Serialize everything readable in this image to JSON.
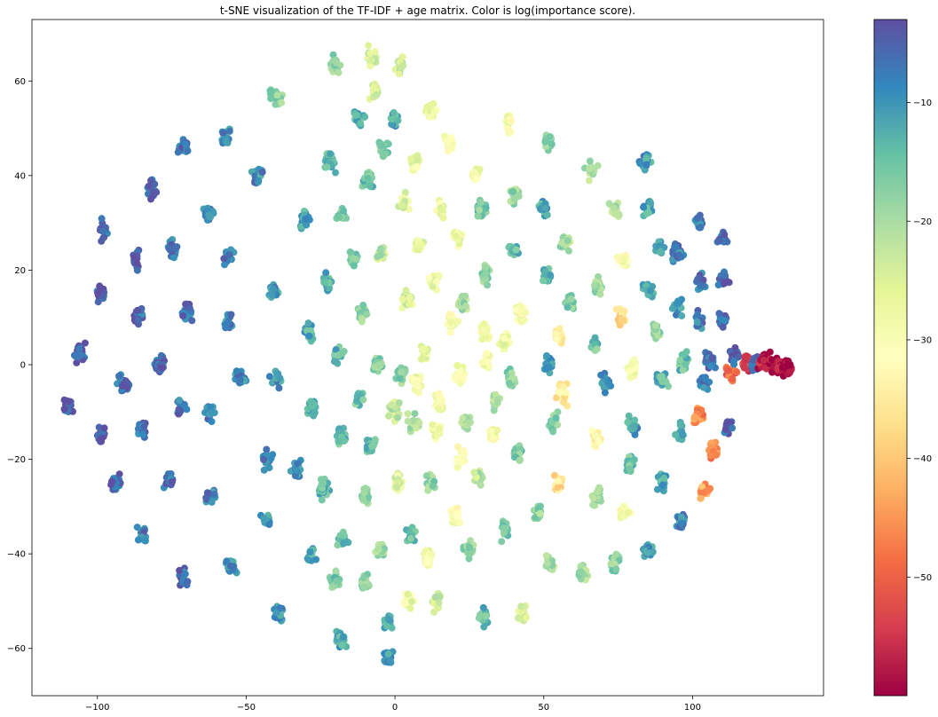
{
  "chart_data": {
    "type": "scatter",
    "title": "t-SNE visualization of the TF-IDF + age matrix. Color is log(importance score).",
    "xlabel": "",
    "ylabel": "",
    "xlim": [
      -122,
      144
    ],
    "ylim": [
      -70,
      73
    ],
    "xticks": [
      -100,
      -50,
      0,
      50,
      100
    ],
    "yticks": [
      -60,
      -40,
      -20,
      0,
      20,
      40,
      60
    ],
    "xtick_labels": [
      "−100",
      "−50",
      "0",
      "50",
      "100"
    ],
    "ytick_labels": [
      "−60",
      "−40",
      "−20",
      "0",
      "20",
      "40",
      "60"
    ],
    "grid": false,
    "colormap": "Spectral",
    "colorbar": {
      "label": "log(importance score)",
      "range": [
        -60,
        -3
      ],
      "ticks": [
        -10,
        -20,
        -30,
        -40,
        -50
      ],
      "tick_labels": [
        "−10",
        "−20",
        "−30",
        "−40",
        "−50"
      ],
      "colors": [
        "#9e0142",
        "#d53e4f",
        "#f46d43",
        "#fdae61",
        "#fee08b",
        "#ffffbf",
        "#e6f598",
        "#abdda4",
        "#66c2a5",
        "#3288bd",
        "#5e4fa2"
      ]
    },
    "clusters": [
      {
        "x": -110,
        "y": -8.5,
        "value": -4
      },
      {
        "x": -106,
        "y": 2.5,
        "value": -4
      },
      {
        "x": -99,
        "y": 15,
        "value": -4
      },
      {
        "x": -99,
        "y": -15,
        "value": -4
      },
      {
        "x": -98,
        "y": 29,
        "value": -5
      },
      {
        "x": -94,
        "y": -25,
        "value": -5
      },
      {
        "x": -91,
        "y": -4,
        "value": -6
      },
      {
        "x": -87,
        "y": 22,
        "value": -6
      },
      {
        "x": -86,
        "y": 10.5,
        "value": -6
      },
      {
        "x": -85,
        "y": -14,
        "value": -6
      },
      {
        "x": -85,
        "y": -36,
        "value": -7
      },
      {
        "x": -82,
        "y": 37,
        "value": -6
      },
      {
        "x": -79,
        "y": 0,
        "value": -6
      },
      {
        "x": -76,
        "y": -25,
        "value": -7
      },
      {
        "x": -75,
        "y": 24,
        "value": -7
      },
      {
        "x": -72,
        "y": -9,
        "value": -7
      },
      {
        "x": -71,
        "y": 46,
        "value": -7
      },
      {
        "x": -71,
        "y": -45,
        "value": -7
      },
      {
        "x": -70,
        "y": 11,
        "value": -7
      },
      {
        "x": -63,
        "y": 32,
        "value": -8
      },
      {
        "x": -62,
        "y": -10,
        "value": -8
      },
      {
        "x": -62,
        "y": -28,
        "value": -8
      },
      {
        "x": -57,
        "y": 48,
        "value": -8
      },
      {
        "x": -56,
        "y": 23,
        "value": -8
      },
      {
        "x": -56,
        "y": 9,
        "value": -8
      },
      {
        "x": -55,
        "y": -43,
        "value": -9
      },
      {
        "x": -52,
        "y": -3,
        "value": -9
      },
      {
        "x": -46,
        "y": 40,
        "value": -9
      },
      {
        "x": -43,
        "y": -20,
        "value": -9
      },
      {
        "x": -43,
        "y": -33,
        "value": -10
      },
      {
        "x": -41,
        "y": 16,
        "value": -10
      },
      {
        "x": -40,
        "y": -3,
        "value": -10
      },
      {
        "x": -40,
        "y": 57,
        "value": -18
      },
      {
        "x": -39,
        "y": -53,
        "value": -10
      },
      {
        "x": -33,
        "y": -22,
        "value": -10
      },
      {
        "x": -30,
        "y": 31,
        "value": -11
      },
      {
        "x": -29,
        "y": 7,
        "value": -12
      },
      {
        "x": -28,
        "y": -40,
        "value": -12
      },
      {
        "x": -28,
        "y": -9,
        "value": -13
      },
      {
        "x": -24,
        "y": -26,
        "value": -14
      },
      {
        "x": -23,
        "y": 17,
        "value": -13
      },
      {
        "x": -22,
        "y": 43,
        "value": -15
      },
      {
        "x": -20,
        "y": -46,
        "value": -16
      },
      {
        "x": -20,
        "y": 63,
        "value": -19
      },
      {
        "x": -19,
        "y": 2,
        "value": -14
      },
      {
        "x": -18,
        "y": -58,
        "value": -12
      },
      {
        "x": -18,
        "y": -15,
        "value": -14
      },
      {
        "x": -18,
        "y": 32,
        "value": -17
      },
      {
        "x": -18,
        "y": -37,
        "value": -15
      },
      {
        "x": -14,
        "y": 23,
        "value": -16
      },
      {
        "x": -12,
        "y": -7,
        "value": -15
      },
      {
        "x": -12,
        "y": 52,
        "value": -14
      },
      {
        "x": -11,
        "y": 11,
        "value": -18
      },
      {
        "x": -10,
        "y": -28,
        "value": -18
      },
      {
        "x": -10,
        "y": -46,
        "value": -17
      },
      {
        "x": -9,
        "y": 39,
        "value": -15
      },
      {
        "x": -8,
        "y": 65,
        "value": -24
      },
      {
        "x": -8,
        "y": -17,
        "value": -15
      },
      {
        "x": -7,
        "y": 58,
        "value": -25
      },
      {
        "x": -6,
        "y": 0,
        "value": -17
      },
      {
        "x": -5,
        "y": 24,
        "value": -22
      },
      {
        "x": -5,
        "y": -39,
        "value": -19
      },
      {
        "x": -4,
        "y": 46,
        "value": -17
      },
      {
        "x": -2,
        "y": -55,
        "value": -14
      },
      {
        "x": -2,
        "y": -62,
        "value": -10
      },
      {
        "x": 0,
        "y": 52,
        "value": -12
      },
      {
        "x": 0,
        "y": -10,
        "value": -22
      },
      {
        "x": 1,
        "y": -25,
        "value": -26
      },
      {
        "x": 2,
        "y": -2,
        "value": -18
      },
      {
        "x": 2,
        "y": 63,
        "value": -22
      },
      {
        "x": 3,
        "y": 34,
        "value": -26
      },
      {
        "x": 4,
        "y": 14,
        "value": -25
      },
      {
        "x": 5,
        "y": -36,
        "value": -14
      },
      {
        "x": 5,
        "y": -50,
        "value": -28
      },
      {
        "x": 6,
        "y": -12,
        "value": -20
      },
      {
        "x": 7,
        "y": -4,
        "value": -29
      },
      {
        "x": 7,
        "y": 43,
        "value": -27
      },
      {
        "x": 8,
        "y": 25,
        "value": -27
      },
      {
        "x": 10,
        "y": 3,
        "value": -26
      },
      {
        "x": 11,
        "y": -41,
        "value": -29
      },
      {
        "x": 12,
        "y": -25,
        "value": -18
      },
      {
        "x": 12,
        "y": 54,
        "value": -29
      },
      {
        "x": 13,
        "y": 18,
        "value": -28
      },
      {
        "x": 14,
        "y": -14,
        "value": -29
      },
      {
        "x": 14,
        "y": -50,
        "value": -24
      },
      {
        "x": 15,
        "y": -8,
        "value": -29
      },
      {
        "x": 16,
        "y": 33,
        "value": -28
      },
      {
        "x": 18,
        "y": 47,
        "value": -29
      },
      {
        "x": 19,
        "y": 9,
        "value": -29
      },
      {
        "x": 20,
        "y": -32,
        "value": -30
      },
      {
        "x": 21,
        "y": 27,
        "value": -28
      },
      {
        "x": 22,
        "y": -2,
        "value": -29
      },
      {
        "x": 22,
        "y": -20,
        "value": -30
      },
      {
        "x": 23,
        "y": 13,
        "value": -20
      },
      {
        "x": 24,
        "y": -12,
        "value": -21
      },
      {
        "x": 25,
        "y": -39,
        "value": -18
      },
      {
        "x": 27,
        "y": 40,
        "value": -29
      },
      {
        "x": 28,
        "y": -24,
        "value": -22
      },
      {
        "x": 29,
        "y": 33,
        "value": -16
      },
      {
        "x": 30,
        "y": 19,
        "value": -17
      },
      {
        "x": 30,
        "y": 7,
        "value": -30
      },
      {
        "x": 30,
        "y": -53,
        "value": -14
      },
      {
        "x": 31,
        "y": 1,
        "value": -30
      },
      {
        "x": 33,
        "y": -15,
        "value": -30
      },
      {
        "x": 34,
        "y": -8,
        "value": -20
      },
      {
        "x": 37,
        "y": -35,
        "value": -16
      },
      {
        "x": 37,
        "y": 5,
        "value": -28
      },
      {
        "x": 38,
        "y": 51,
        "value": -29
      },
      {
        "x": 39,
        "y": -3,
        "value": -18
      },
      {
        "x": 40,
        "y": 24,
        "value": -15
      },
      {
        "x": 40,
        "y": 36,
        "value": -19
      },
      {
        "x": 41,
        "y": -18,
        "value": -16
      },
      {
        "x": 42,
        "y": 11,
        "value": -30
      },
      {
        "x": 43,
        "y": -53,
        "value": -24
      },
      {
        "x": 48,
        "y": -31,
        "value": -18
      },
      {
        "x": 50,
        "y": 33,
        "value": -12
      },
      {
        "x": 51,
        "y": 19,
        "value": -14
      },
      {
        "x": 52,
        "y": 47,
        "value": -18
      },
      {
        "x": 52,
        "y": -42,
        "value": -20
      },
      {
        "x": 52,
        "y": 0,
        "value": -12
      },
      {
        "x": 53,
        "y": -12,
        "value": -16
      },
      {
        "x": 55,
        "y": 6,
        "value": -33
      },
      {
        "x": 55,
        "y": -25,
        "value": -36
      },
      {
        "x": 56,
        "y": -6,
        "value": -35
      },
      {
        "x": 57,
        "y": 26,
        "value": -20
      },
      {
        "x": 59,
        "y": 13,
        "value": -16
      },
      {
        "x": 63,
        "y": -44,
        "value": -20
      },
      {
        "x": 66,
        "y": 41,
        "value": -20
      },
      {
        "x": 67,
        "y": 4,
        "value": -15
      },
      {
        "x": 68,
        "y": -28,
        "value": -18
      },
      {
        "x": 68,
        "y": -16,
        "value": -34
      },
      {
        "x": 68,
        "y": 17,
        "value": -18
      },
      {
        "x": 71,
        "y": -4,
        "value": -10
      },
      {
        "x": 74,
        "y": -42,
        "value": -18
      },
      {
        "x": 74,
        "y": 33,
        "value": -20
      },
      {
        "x": 76,
        "y": 10,
        "value": -37
      },
      {
        "x": 77,
        "y": 22,
        "value": -30
      },
      {
        "x": 77,
        "y": -31,
        "value": -30
      },
      {
        "x": 79,
        "y": -21,
        "value": -15
      },
      {
        "x": 80,
        "y": -13,
        "value": -11
      },
      {
        "x": 80,
        "y": -1,
        "value": -30
      },
      {
        "x": 84,
        "y": 43,
        "value": -10
      },
      {
        "x": 85,
        "y": 33,
        "value": -12
      },
      {
        "x": 85,
        "y": 16,
        "value": -12
      },
      {
        "x": 85,
        "y": -39,
        "value": -10
      },
      {
        "x": 88,
        "y": 7,
        "value": -18
      },
      {
        "x": 89,
        "y": 25,
        "value": -12
      },
      {
        "x": 90,
        "y": -3,
        "value": -14
      },
      {
        "x": 90,
        "y": -25,
        "value": -12
      },
      {
        "x": 95,
        "y": 12,
        "value": -10
      },
      {
        "x": 95,
        "y": 24,
        "value": -8
      },
      {
        "x": 96,
        "y": -14,
        "value": -12
      },
      {
        "x": 96,
        "y": -33,
        "value": -8
      },
      {
        "x": 97,
        "y": 1,
        "value": -15
      },
      {
        "x": 102,
        "y": 30,
        "value": -8
      },
      {
        "x": 102,
        "y": 9,
        "value": -8
      },
      {
        "x": 102,
        "y": -11,
        "value": -46
      },
      {
        "x": 103,
        "y": 17,
        "value": -7
      },
      {
        "x": 104,
        "y": -4,
        "value": -8
      },
      {
        "x": 104,
        "y": -27,
        "value": -44
      },
      {
        "x": 106,
        "y": 1,
        "value": -6
      },
      {
        "x": 107,
        "y": -18,
        "value": -46
      },
      {
        "x": 110,
        "y": 27,
        "value": -7
      },
      {
        "x": 110,
        "y": 18,
        "value": -6
      },
      {
        "x": 110,
        "y": 10,
        "value": -6
      },
      {
        "x": 112,
        "y": -13,
        "value": -5
      },
      {
        "x": 113,
        "y": -2,
        "value": -50
      },
      {
        "x": 114,
        "y": 2,
        "value": -5
      },
      {
        "x": 118,
        "y": 0,
        "value": -54
      },
      {
        "x": 121,
        "y": 0,
        "value": -5
      },
      {
        "x": 124,
        "y": 0.5,
        "value": -57
      },
      {
        "x": 127,
        "y": 0.2,
        "value": -58
      },
      {
        "x": 130,
        "y": -0.3,
        "value": -59
      },
      {
        "x": 132,
        "y": -0.6,
        "value": -60
      }
    ]
  }
}
